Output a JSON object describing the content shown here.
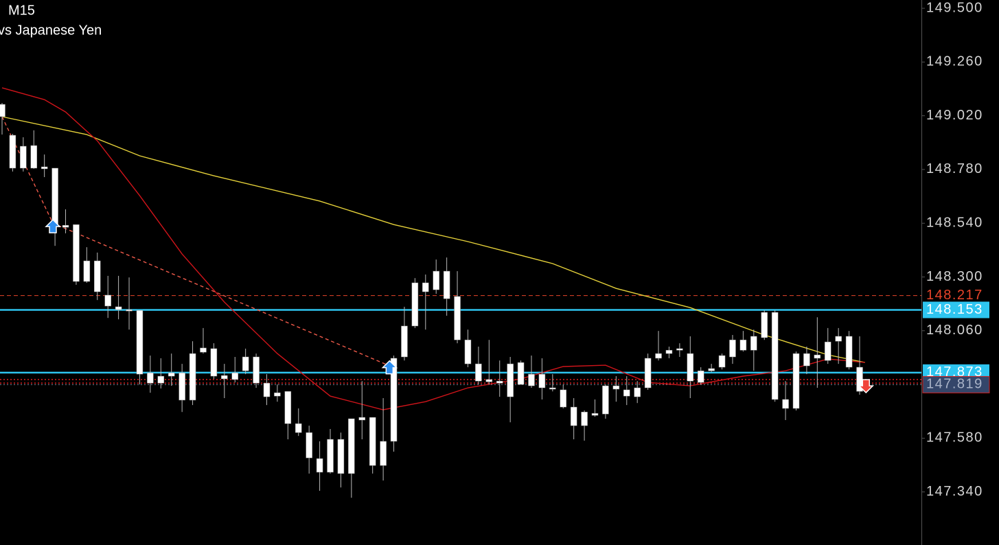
{
  "chart_data": {
    "type": "candlestick",
    "title": "M15",
    "subtitle": "vs Japanese Yen",
    "ylim": [
      147.103,
      149.537
    ],
    "yticks": [
      {
        "value": 149.5,
        "label": "149.500"
      },
      {
        "value": 149.26,
        "label": "149.260"
      },
      {
        "value": 149.02,
        "label": "149.020"
      },
      {
        "value": 148.78,
        "label": "148.780"
      },
      {
        "value": 148.54,
        "label": "148.540"
      },
      {
        "value": 148.3,
        "label": "148.300"
      },
      {
        "value": 148.06,
        "label": "148.060"
      },
      {
        "value": 147.58,
        "label": "147.580"
      },
      {
        "value": 147.34,
        "label": "147.340"
      }
    ],
    "candle_color": "#ffffff",
    "wick_color": "#bbbbbb",
    "open": [
      149.071,
      148.933,
      148.786,
      148.887,
      148.783,
      148.786,
      148.522,
      148.534,
      148.28,
      148.372,
      148.219,
      148.167,
      148.154,
      148.151,
      147.872,
      147.826,
      147.857,
      147.872,
      147.75,
      147.964,
      147.98,
      147.86,
      147.842,
      147.881,
      147.943,
      147.826,
      147.768,
      147.789,
      147.645,
      147.605,
      147.489,
      147.428,
      147.575,
      147.422,
      147.673,
      147.673,
      147.458,
      147.566,
      147.943,
      148.081,
      148.274,
      148.243,
      148.326,
      148.213,
      148.019,
      147.912,
      147.842,
      147.835,
      147.765,
      147.918,
      147.814,
      147.866,
      147.805,
      147.796,
      147.719,
      147.636,
      147.682,
      147.688,
      147.814,
      147.796,
      147.765,
      147.805,
      147.937,
      147.958,
      147.973,
      147.958,
      147.829,
      147.881,
      147.897,
      147.943,
      147.973,
      148.035,
      148.029,
      148.142,
      147.753,
      147.713,
      147.958,
      147.937,
      147.927,
      148.013,
      148.035,
      147.897
    ],
    "high": [
      149.077,
      148.939,
      148.924,
      148.955,
      148.847,
      148.786,
      148.602,
      148.534,
      148.433,
      148.409,
      148.305,
      148.305,
      148.298,
      148.151,
      147.949,
      147.937,
      147.958,
      147.912,
      148.013,
      148.072,
      148.004,
      147.912,
      147.943,
      147.98,
      147.958,
      147.866,
      147.82,
      147.789,
      147.713,
      147.636,
      147.566,
      147.621,
      147.605,
      147.667,
      147.835,
      147.673,
      147.759,
      147.949,
      148.167,
      148.295,
      148.311,
      148.378,
      148.387,
      148.326,
      148.065,
      147.989,
      148.019,
      147.927,
      147.943,
      147.927,
      147.949,
      147.937,
      147.866,
      147.82,
      147.759,
      147.704,
      147.753,
      147.82,
      147.857,
      147.857,
      147.835,
      147.958,
      148.059,
      147.989,
      148.004,
      148.035,
      147.897,
      147.912,
      147.958,
      148.041,
      148.059,
      148.065,
      148.151,
      148.151,
      147.835,
      147.967,
      147.989,
      148.12,
      148.072,
      148.072,
      148.059,
      148.035
    ],
    "low": [
      148.936,
      148.771,
      148.771,
      148.783,
      148.746,
      148.439,
      148.495,
      148.265,
      148.274,
      148.197,
      148.117,
      148.111,
      148.065,
      147.82,
      147.783,
      147.802,
      147.814,
      147.697,
      147.728,
      147.958,
      147.845,
      147.759,
      147.829,
      147.866,
      147.805,
      147.728,
      147.743,
      147.575,
      147.59,
      147.422,
      147.345,
      147.422,
      147.36,
      147.314,
      147.575,
      147.422,
      147.391,
      147.52,
      147.927,
      148.072,
      148.065,
      148.225,
      148.127,
      148.004,
      147.897,
      147.82,
      147.82,
      147.765,
      147.651,
      147.82,
      147.805,
      147.753,
      147.789,
      147.713,
      147.575,
      147.569,
      147.676,
      147.667,
      147.743,
      147.728,
      147.737,
      147.796,
      147.927,
      147.937,
      147.943,
      147.759,
      147.82,
      147.875,
      147.887,
      147.912,
      147.967,
      147.881,
      148.019,
      147.743,
      147.661,
      147.704,
      147.866,
      147.805,
      147.912,
      147.912,
      147.887,
      147.774
    ],
    "close": [
      149.016,
      148.786,
      148.884,
      148.786,
      148.792,
      148.525,
      148.531,
      148.28,
      148.372,
      148.234,
      148.17,
      148.154,
      148.148,
      147.866,
      147.826,
      147.857,
      147.872,
      147.75,
      147.958,
      147.983,
      147.857,
      147.845,
      147.872,
      147.943,
      147.826,
      147.765,
      147.783,
      147.645,
      147.605,
      147.492,
      147.428,
      147.575,
      147.422,
      147.667,
      147.661,
      147.458,
      147.566,
      147.937,
      148.081,
      148.274,
      148.234,
      148.326,
      148.203,
      148.019,
      147.912,
      147.835,
      147.832,
      147.826,
      147.912,
      147.82,
      147.866,
      147.805,
      147.799,
      147.719,
      147.636,
      147.697,
      147.691,
      147.814,
      147.799,
      147.768,
      147.805,
      147.937,
      147.958,
      147.973,
      147.98,
      147.835,
      147.881,
      147.891,
      147.949,
      148.019,
      148.019,
      147.973,
      148.142,
      147.753,
      147.713,
      147.958,
      147.903,
      147.952,
      148.01,
      148.035,
      147.897,
      147.789
    ],
    "overlays": [
      {
        "color": "#e6d23a",
        "dash": false,
        "x": [
          0,
          8,
          13,
          20,
          30,
          37,
          44,
          52,
          58,
          65,
          72,
          78,
          81.5
        ],
        "values": [
          149.016,
          148.936,
          148.841,
          148.752,
          148.639,
          148.534,
          148.458,
          148.36,
          148.249,
          148.163,
          148.041,
          147.952,
          147.918
        ]
      },
      {
        "color": "#d0141a",
        "dash": false,
        "x": [
          0,
          4,
          6,
          9,
          13,
          17,
          21,
          26,
          31,
          36,
          40,
          44,
          49,
          53,
          57,
          61,
          65,
          70,
          74,
          78,
          81.5
        ],
        "values": [
          149.145,
          149.092,
          149.037,
          148.908,
          148.663,
          148.403,
          148.188,
          147.958,
          147.768,
          147.707,
          147.743,
          147.805,
          147.845,
          147.9,
          147.906,
          147.829,
          147.814,
          147.857,
          147.881,
          147.934,
          147.918
        ]
      },
      {
        "color": "#f05a4a",
        "dash": true,
        "x": [
          0,
          4.8,
          36.6
        ],
        "values": [
          149.016,
          148.54,
          147.903
        ]
      }
    ],
    "levels": [
      {
        "value": 148.217,
        "color": "#e8442a",
        "style": "dashed",
        "label_bg": "#000000",
        "label_color": "#e8442a"
      },
      {
        "value": 148.153,
        "color": "#2ec5f0",
        "style": "solid",
        "label_bg": "#2ec5f0",
        "label_color": "#ffffff"
      },
      {
        "value": 147.873,
        "color": "#2ec5f0",
        "style": "solid",
        "label_bg": "#2ec5f0",
        "label_color": "#ffffff"
      },
      {
        "value": 147.819,
        "color": "#7a8294",
        "style": "dotted",
        "label_bg": "#34466a",
        "label_color": "#aab4c8"
      }
    ],
    "marker_lines": [
      {
        "value": 147.842,
        "color": "#e02020"
      },
      {
        "value": 147.826,
        "color": "#e02020"
      }
    ],
    "signals": [
      {
        "side": "buy",
        "x": 4.8,
        "value": 148.525,
        "color": "#2d8ef0"
      },
      {
        "side": "buy",
        "x": 36.6,
        "value": 147.895,
        "color": "#2d8ef0"
      },
      {
        "side": "sell",
        "x": 81.6,
        "value": 147.814,
        "color": "#f0443a"
      }
    ]
  }
}
